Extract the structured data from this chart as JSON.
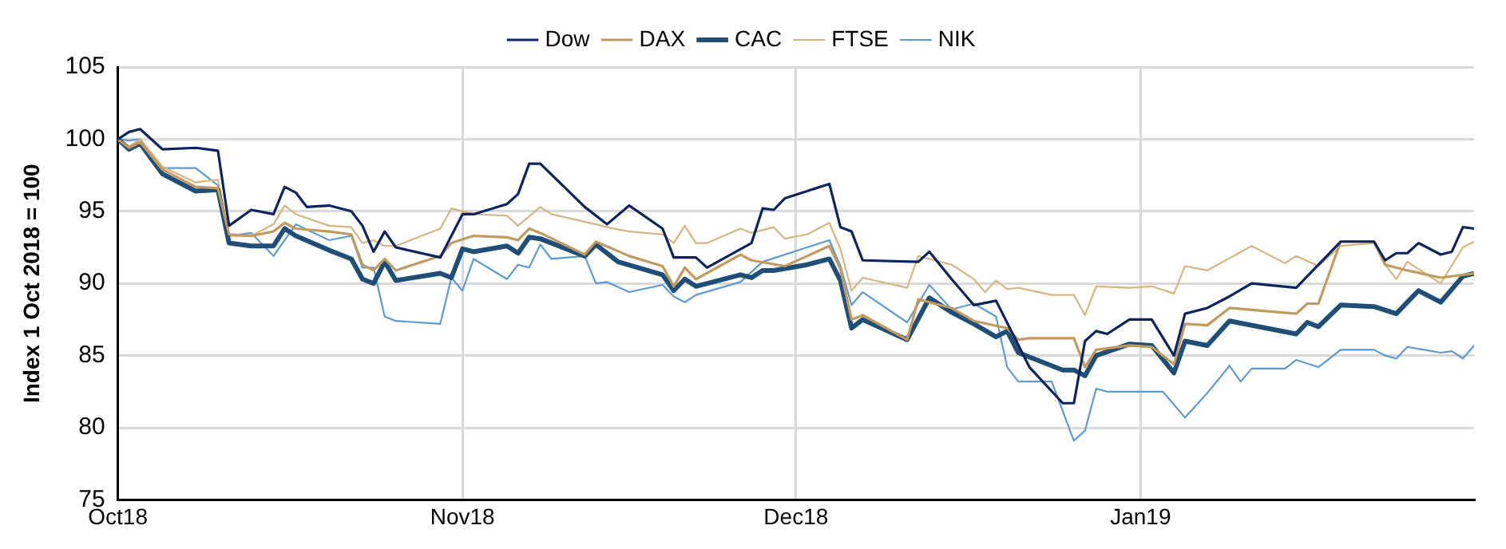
{
  "chart_data": {
    "type": "line",
    "ylabel": "Index 1 Oct 2018 = 100",
    "ylim": [
      75,
      105
    ],
    "yticks": [
      75,
      80,
      85,
      90,
      95,
      100,
      105
    ],
    "xlim": [
      "2018-10-01",
      "2019-01-31"
    ],
    "xticks": [
      {
        "value": "2018-10-01",
        "label": "Oct18"
      },
      {
        "value": "2018-11-01",
        "label": "Nov18"
      },
      {
        "value": "2018-12-01",
        "label": "Dec18"
      },
      {
        "value": "2019-01-01",
        "label": "Jan19"
      }
    ],
    "grid": true,
    "legend": "top",
    "series": [
      {
        "name": "Dow",
        "color": "#0c2461",
        "x": [
          "2018-10-01",
          "2018-10-02",
          "2018-10-03",
          "2018-10-05",
          "2018-10-08",
          "2018-10-10",
          "2018-10-11",
          "2018-10-13",
          "2018-10-15",
          "2018-10-16",
          "2018-10-17",
          "2018-10-18",
          "2018-10-20",
          "2018-10-22",
          "2018-10-23",
          "2018-10-24",
          "2018-10-25",
          "2018-10-26",
          "2018-10-30",
          "2018-10-31",
          "2018-11-01",
          "2018-11-02",
          "2018-11-05",
          "2018-11-06",
          "2018-11-07",
          "2018-11-08",
          "2018-11-12",
          "2018-11-14",
          "2018-11-16",
          "2018-11-19",
          "2018-11-20",
          "2018-11-22",
          "2018-11-23",
          "2018-11-27",
          "2018-11-28",
          "2018-11-29",
          "2018-11-30",
          "2018-12-02",
          "2018-12-04",
          "2018-12-05",
          "2018-12-06",
          "2018-12-07",
          "2018-12-12",
          "2018-12-13",
          "2018-12-15",
          "2018-12-17",
          "2018-12-19",
          "2018-12-22",
          "2018-12-25",
          "2018-12-26",
          "2018-12-27",
          "2018-12-28",
          "2018-12-29",
          "2018-12-31",
          "2019-01-02",
          "2019-01-04",
          "2019-01-05",
          "2019-01-07",
          "2019-01-09",
          "2019-01-11",
          "2019-01-15",
          "2019-01-19",
          "2019-01-22",
          "2019-01-23",
          "2019-01-24",
          "2019-01-25",
          "2019-01-26",
          "2019-01-28",
          "2019-01-29",
          "2019-01-30",
          "2019-01-31"
        ],
        "values": [
          100,
          100.5,
          100.7,
          99.3,
          99.4,
          99.2,
          94,
          95.1,
          94.8,
          96.7,
          96.3,
          95.3,
          95.4,
          95,
          94,
          92.2,
          93.6,
          92.5,
          91.8,
          93.3,
          94.8,
          94.8,
          95.5,
          96.2,
          98.3,
          98.3,
          95.3,
          94.1,
          95.4,
          93.8,
          91.8,
          91.8,
          91.1,
          92.8,
          95.2,
          95.1,
          95.9,
          96.4,
          96.9,
          93.9,
          93.6,
          91.6,
          91.5,
          92.2,
          90.3,
          88.5,
          88.8,
          84.2,
          81.7,
          81.7,
          86,
          86.7,
          86.5,
          87.5,
          87.5,
          85,
          87.9,
          88.3,
          89.1,
          90,
          89.7,
          92.9,
          92.9,
          91.6,
          92.1,
          92.1,
          92.8,
          92,
          92.2,
          93.9,
          93.8
        ]
      },
      {
        "name": "DAX",
        "color": "#c49a5c",
        "x": [
          "2018-10-01",
          "2018-10-02",
          "2018-10-03",
          "2018-10-05",
          "2018-10-08",
          "2018-10-10",
          "2018-10-11",
          "2018-10-13",
          "2018-10-15",
          "2018-10-16",
          "2018-10-17",
          "2018-10-20",
          "2018-10-22",
          "2018-10-23",
          "2018-10-24",
          "2018-10-25",
          "2018-10-26",
          "2018-10-30",
          "2018-10-31",
          "2018-11-02",
          "2018-11-05",
          "2018-11-06",
          "2018-11-07",
          "2018-11-08",
          "2018-11-12",
          "2018-11-13",
          "2018-11-16",
          "2018-11-19",
          "2018-11-20",
          "2018-11-21",
          "2018-11-22",
          "2018-11-26",
          "2018-11-27",
          "2018-11-30",
          "2018-12-02",
          "2018-12-04",
          "2018-12-05",
          "2018-12-06",
          "2018-12-07",
          "2018-12-11",
          "2018-12-12",
          "2018-12-15",
          "2018-12-17",
          "2018-12-20",
          "2018-12-21",
          "2018-12-22",
          "2018-12-26",
          "2018-12-27",
          "2018-12-28",
          "2018-12-31",
          "2019-01-02",
          "2019-01-04",
          "2019-01-05",
          "2019-01-07",
          "2019-01-09",
          "2019-01-15",
          "2019-01-16",
          "2019-01-17",
          "2019-01-19",
          "2019-01-22",
          "2019-01-23",
          "2019-01-25",
          "2019-01-28",
          "2019-01-31"
        ],
        "values": [
          100,
          99.4,
          99.8,
          97.9,
          96.7,
          96.6,
          93.4,
          93.3,
          93.6,
          94.2,
          93.8,
          93.6,
          93.4,
          91.3,
          90.9,
          91.7,
          90.9,
          91.9,
          92.8,
          93.3,
          93.2,
          93,
          93.8,
          93.5,
          92,
          92.9,
          91.9,
          91.2,
          89.8,
          91.1,
          90.3,
          92,
          91.6,
          91.2,
          91.9,
          92.6,
          91,
          87.5,
          87.8,
          86.1,
          88.9,
          88.3,
          87.4,
          86.9,
          86.1,
          86.2,
          86.2,
          84.2,
          85.4,
          85.7,
          85.6,
          84.4,
          87.2,
          87.1,
          88.3,
          87.9,
          88.6,
          88.6,
          92.9,
          92.9,
          91.3,
          90.9,
          90.4,
          90.7
        ]
      },
      {
        "name": "CAC",
        "color": "#1f4e79",
        "x": [
          "2018-10-01",
          "2018-10-02",
          "2018-10-03",
          "2018-10-05",
          "2018-10-08",
          "2018-10-10",
          "2018-10-11",
          "2018-10-13",
          "2018-10-15",
          "2018-10-16",
          "2018-10-17",
          "2018-10-20",
          "2018-10-22",
          "2018-10-23",
          "2018-10-24",
          "2018-10-25",
          "2018-10-26",
          "2018-10-30",
          "2018-10-31",
          "2018-11-01",
          "2018-11-02",
          "2018-11-05",
          "2018-11-06",
          "2018-11-07",
          "2018-11-08",
          "2018-11-12",
          "2018-11-13",
          "2018-11-15",
          "2018-11-19",
          "2018-11-20",
          "2018-11-21",
          "2018-11-22",
          "2018-11-26",
          "2018-11-27",
          "2018-11-28",
          "2018-11-29",
          "2018-12-02",
          "2018-12-04",
          "2018-12-05",
          "2018-12-06",
          "2018-12-07",
          "2018-12-11",
          "2018-12-13",
          "2018-12-15",
          "2018-12-17",
          "2018-12-19",
          "2018-12-20",
          "2018-12-21",
          "2018-12-25",
          "2018-12-26",
          "2018-12-27",
          "2018-12-28",
          "2018-12-31",
          "2019-01-02",
          "2019-01-04",
          "2019-01-05",
          "2019-01-07",
          "2019-01-09",
          "2019-01-15",
          "2019-01-16",
          "2019-01-17",
          "2019-01-19",
          "2019-01-22",
          "2019-01-24",
          "2019-01-26",
          "2019-01-28",
          "2019-01-30",
          "2019-01-31"
        ],
        "values": [
          100,
          99.3,
          99.7,
          97.6,
          96.4,
          96.5,
          92.8,
          92.6,
          92.6,
          93.8,
          93.3,
          92.3,
          91.7,
          90.3,
          90,
          91.5,
          90.2,
          90.7,
          90.4,
          92.4,
          92.2,
          92.6,
          92.1,
          93.2,
          93.1,
          91.9,
          92.7,
          91.5,
          90.6,
          89.5,
          90.3,
          89.8,
          90.6,
          90.4,
          90.9,
          90.9,
          91.3,
          91.7,
          90.2,
          86.9,
          87.5,
          86.1,
          89,
          88,
          87.2,
          86.3,
          86.7,
          85.2,
          84,
          84,
          83.6,
          85,
          85.8,
          85.7,
          83.8,
          86,
          85.7,
          87.4,
          86.5,
          87.3,
          87,
          88.5,
          88.4,
          87.9,
          89.5,
          88.7,
          90.5,
          90.7
        ]
      },
      {
        "name": "FTSE",
        "color": "#d8b47e",
        "x": [
          "2018-10-01",
          "2018-10-02",
          "2018-10-03",
          "2018-10-05",
          "2018-10-08",
          "2018-10-10",
          "2018-10-11",
          "2018-10-13",
          "2018-10-15",
          "2018-10-16",
          "2018-10-17",
          "2018-10-20",
          "2018-10-22",
          "2018-10-23",
          "2018-10-24",
          "2018-10-25",
          "2018-10-26",
          "2018-10-30",
          "2018-10-31",
          "2018-11-02",
          "2018-11-05",
          "2018-11-06",
          "2018-11-08",
          "2018-11-09",
          "2018-11-13",
          "2018-11-14",
          "2018-11-16",
          "2018-11-19",
          "2018-11-20",
          "2018-11-21",
          "2018-11-22",
          "2018-11-23",
          "2018-11-26",
          "2018-11-27",
          "2018-11-29",
          "2018-11-30",
          "2018-12-02",
          "2018-12-04",
          "2018-12-05",
          "2018-12-06",
          "2018-12-07",
          "2018-12-11",
          "2018-12-12",
          "2018-12-15",
          "2018-12-17",
          "2018-12-18",
          "2018-12-19",
          "2018-12-20",
          "2018-12-21",
          "2018-12-24",
          "2018-12-26",
          "2018-12-27",
          "2018-12-28",
          "2018-12-31",
          "2019-01-02",
          "2019-01-04",
          "2019-01-05",
          "2019-01-07",
          "2019-01-11",
          "2019-01-14",
          "2019-01-15",
          "2019-01-17",
          "2019-01-19",
          "2019-01-22",
          "2019-01-23",
          "2019-01-24",
          "2019-01-25",
          "2019-01-28",
          "2019-01-30",
          "2019-01-31"
        ],
        "values": [
          100,
          99.5,
          100,
          98.1,
          97,
          97.2,
          93.3,
          93.3,
          94.1,
          95.4,
          94.8,
          94,
          93.9,
          92.8,
          93,
          92.6,
          92.6,
          93.8,
          95.2,
          94.8,
          94.7,
          94,
          95.3,
          94.8,
          94.1,
          93.9,
          93.6,
          93.4,
          92.8,
          94,
          92.8,
          92.8,
          93.8,
          93.5,
          93.9,
          93.1,
          93.4,
          94.2,
          92.4,
          89.5,
          90.4,
          89.7,
          91.9,
          91.3,
          90.3,
          89.4,
          90.2,
          89.6,
          89.7,
          89.2,
          89.2,
          87.8,
          89.8,
          89.7,
          89.8,
          89.3,
          91.2,
          90.9,
          92.6,
          91.4,
          91.9,
          91.2,
          92.6,
          92.8,
          91.3,
          90.3,
          91.5,
          90,
          92.5,
          92.9
        ]
      },
      {
        "name": "NIK",
        "color": "#5b9bd5",
        "x": [
          "2018-10-01",
          "2018-10-02",
          "2018-10-03",
          "2018-10-05",
          "2018-10-08",
          "2018-10-10",
          "2018-10-11",
          "2018-10-13",
          "2018-10-15",
          "2018-10-17",
          "2018-10-20",
          "2018-10-22",
          "2018-10-23",
          "2018-10-24",
          "2018-10-25",
          "2018-10-26",
          "2018-10-30",
          "2018-10-31",
          "2018-11-01",
          "2018-11-02",
          "2018-11-05",
          "2018-11-06",
          "2018-11-07",
          "2018-11-08",
          "2018-11-09",
          "2018-11-12",
          "2018-11-13",
          "2018-11-14",
          "2018-11-16",
          "2018-11-19",
          "2018-11-20",
          "2018-11-21",
          "2018-11-22",
          "2018-11-26",
          "2018-11-28",
          "2018-12-02",
          "2018-12-04",
          "2018-12-05",
          "2018-12-06",
          "2018-12-07",
          "2018-12-11",
          "2018-12-13",
          "2018-12-15",
          "2018-12-17",
          "2018-12-19",
          "2018-12-20",
          "2018-12-21",
          "2018-12-24",
          "2018-12-26",
          "2018-12-27",
          "2018-12-28",
          "2018-12-29",
          "2018-12-31",
          "2019-01-03",
          "2019-01-05",
          "2019-01-07",
          "2019-01-09",
          "2019-01-10",
          "2019-01-11",
          "2019-01-14",
          "2019-01-15",
          "2019-01-17",
          "2019-01-19",
          "2019-01-22",
          "2019-01-23",
          "2019-01-24",
          "2019-01-25",
          "2019-01-28",
          "2019-01-29",
          "2019-01-30",
          "2019-01-31"
        ],
        "values": [
          100,
          99.9,
          100,
          98,
          98,
          96.8,
          93.3,
          93.5,
          91.9,
          94.1,
          93,
          93.3,
          91.1,
          91.1,
          87.7,
          87.4,
          87.2,
          90.4,
          89.5,
          91.7,
          90.3,
          91.3,
          91.1,
          92.7,
          91.7,
          91.9,
          90,
          90.1,
          89.4,
          89.9,
          89.1,
          88.7,
          89.2,
          90.1,
          91.5,
          92.5,
          93,
          91.2,
          88.5,
          89.4,
          87.3,
          89.9,
          88.2,
          88.6,
          87.7,
          84.2,
          83.2,
          83.2,
          79.1,
          79.8,
          82.7,
          82.5,
          82.5,
          82.5,
          80.7,
          82.4,
          84.3,
          83.2,
          84.1,
          84.1,
          84.7,
          84.2,
          85.4,
          85.4,
          85,
          84.8,
          85.6,
          85.2,
          85.3,
          84.8,
          85.7
        ]
      }
    ]
  }
}
